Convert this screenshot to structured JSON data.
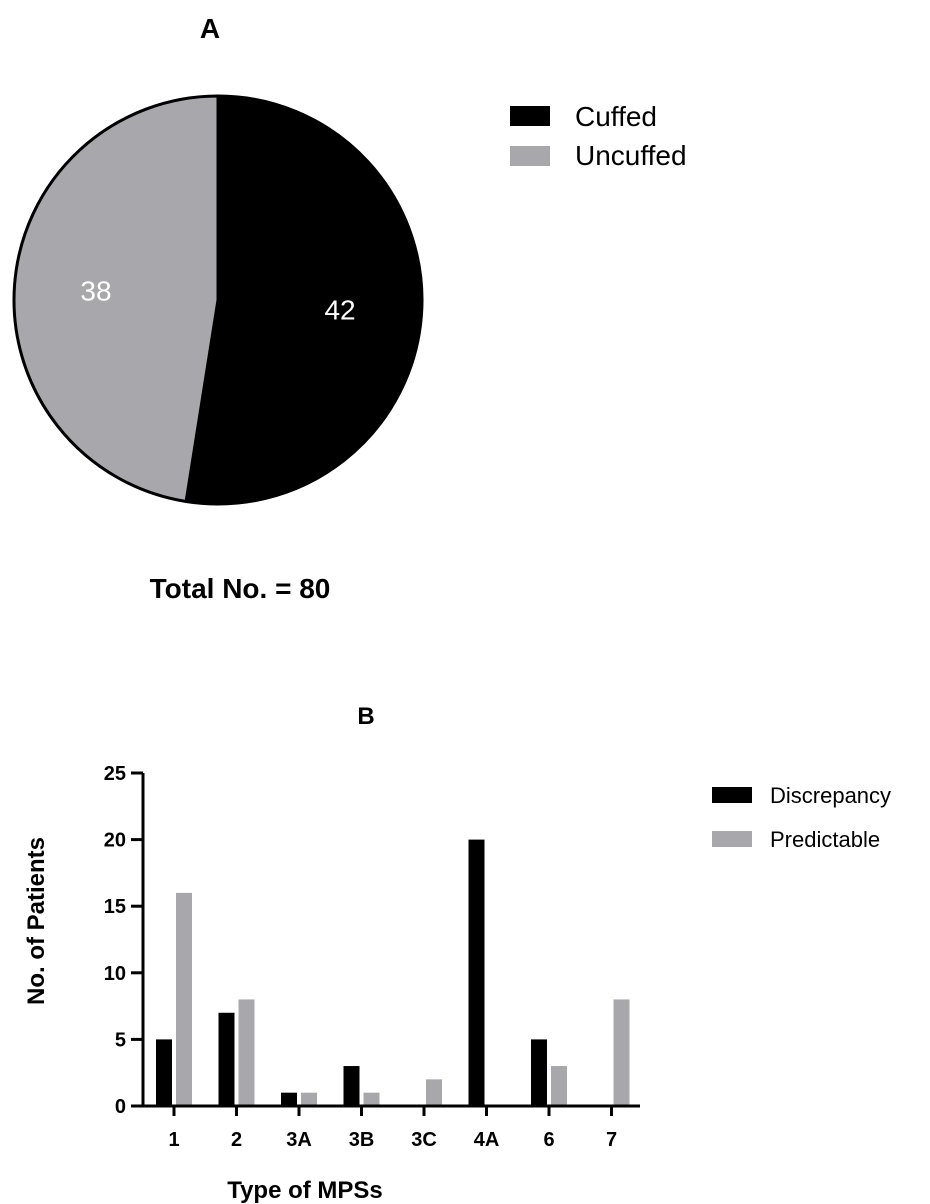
{
  "chart_data": [
    {
      "type": "pie",
      "title": "A",
      "subtitle": "Total No. = 80",
      "categories": [
        "Cuffed",
        "Uncuffed"
      ],
      "values": [
        42,
        38
      ],
      "colors": [
        "#000000",
        "#a8a7ab"
      ],
      "label_colors": [
        "#ffffff",
        "#ffffff"
      ],
      "legend": [
        "Cuffed",
        "Uncuffed"
      ],
      "legend_position": "right"
    },
    {
      "type": "bar",
      "title": "B",
      "xlabel": "Type of MPSs",
      "ylabel": "No. of Patients",
      "categories": [
        "1",
        "2",
        "3A",
        "3B",
        "3C",
        "4A",
        "6",
        "7"
      ],
      "series": [
        {
          "name": "Discrepancy",
          "color": "#000000",
          "values": [
            5,
            7,
            1,
            3,
            0,
            20,
            5,
            0
          ]
        },
        {
          "name": "Predictable",
          "color": "#a8a7ab",
          "values": [
            16,
            8,
            1,
            1,
            2,
            0,
            3,
            8
          ]
        }
      ],
      "ylim": [
        0,
        25
      ],
      "yticks": [
        0,
        5,
        10,
        15,
        20,
        25
      ],
      "grid": false,
      "legend_position": "right"
    }
  ]
}
